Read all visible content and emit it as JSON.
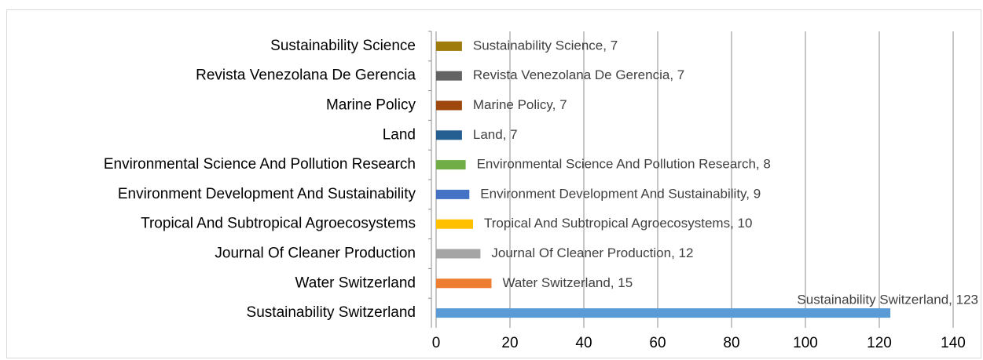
{
  "chart_data": {
    "type": "bar",
    "orientation": "horizontal",
    "categories": [
      "Sustainability Science",
      "Revista Venezolana De Gerencia",
      "Marine Policy",
      "Land",
      "Environmental Science And Pollution Research",
      "Environment Development And Sustainability",
      "Tropical And Subtropical Agroecosystems",
      "Journal Of Cleaner Production",
      "Water Switzerland",
      "Sustainability Switzerland"
    ],
    "values": [
      7,
      7,
      7,
      7,
      8,
      9,
      10,
      12,
      15,
      123
    ],
    "value_labels": [
      "Sustainability Science, 7",
      "Revista Venezolana De Gerencia, 7",
      "Marine Policy, 7",
      "Land, 7",
      "Environmental Science And Pollution Research, 8",
      "Environment Development And Sustainability, 9",
      "Tropical And Subtropical Agroecosystems, 10",
      "Journal Of Cleaner Production, 12",
      "Water Switzerland, 15",
      "Sustainability Switzerland, 123"
    ],
    "colors": [
      "#9e7b0a",
      "#636363",
      "#9e480e",
      "#255e91",
      "#70ad47",
      "#4472c4",
      "#ffc000",
      "#a5a5a5",
      "#ed7d31",
      "#5b9bd5"
    ],
    "xlim": [
      0,
      140
    ],
    "xticks": [
      0,
      20,
      40,
      60,
      80,
      100,
      120,
      140
    ],
    "grid": true
  }
}
